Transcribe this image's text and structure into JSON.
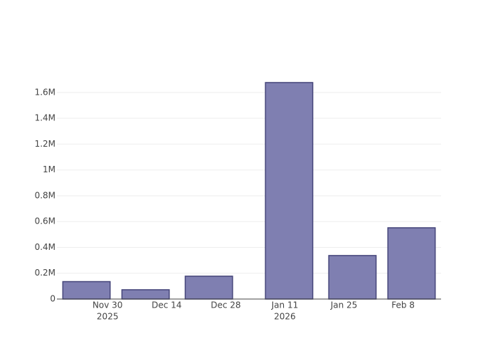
{
  "chart_data": {
    "type": "bar",
    "x": [
      "2025-11-25",
      "2025-12-09",
      "2025-12-24",
      "2026-01-12",
      "2026-01-27",
      "2026-02-10"
    ],
    "values": [
      135000,
      72000,
      177000,
      1677000,
      337000,
      552000
    ],
    "color": "#7f7fb1",
    "edge_color": "#45457a",
    "xlim": [
      "2025-11-18",
      "2026-02-17"
    ],
    "xticks": [
      {
        "value": "2025-11-30",
        "label": "Nov 30",
        "sublabel": "2025"
      },
      {
        "value": "2025-12-14",
        "label": "Dec 14"
      },
      {
        "value": "2025-12-28",
        "label": "Dec 28"
      },
      {
        "value": "2026-01-11",
        "label": "Jan 11",
        "sublabel": "2026"
      },
      {
        "value": "2026-01-25",
        "label": "Jan 25"
      },
      {
        "value": "2026-02-08",
        "label": "Feb 8"
      }
    ],
    "ylim": [
      0,
      1765000
    ],
    "yticks": [
      0,
      {
        "value": 200000,
        "label": "0.2M"
      },
      {
        "value": 400000,
        "label": "0.4M"
      },
      {
        "value": 600000,
        "label": "0.6M"
      },
      {
        "value": 800000,
        "label": "0.8M"
      },
      {
        "value": 1000000,
        "label": "1M"
      },
      {
        "value": 1200000,
        "label": "1.2M"
      },
      {
        "value": 1400000,
        "label": "1.4M"
      },
      {
        "value": 1600000,
        "label": "1.6M"
      }
    ],
    "grid": true
  }
}
